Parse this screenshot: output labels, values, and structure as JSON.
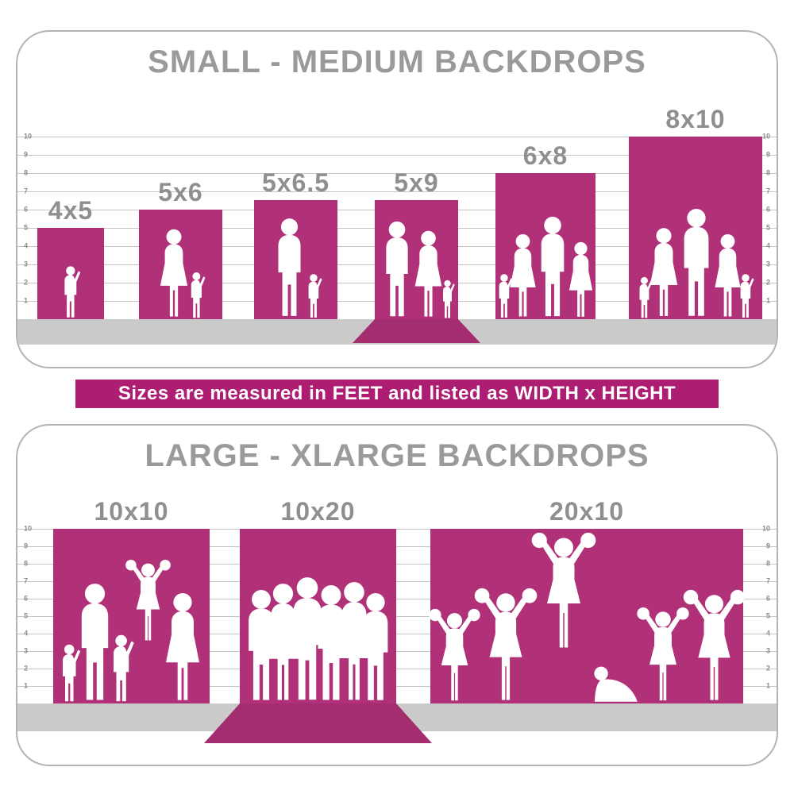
{
  "banner": {
    "text": "Sizes are measured in FEET and listed as WIDTH x HEIGHT"
  },
  "colors": {
    "magenta": "#b13179",
    "sweep": "#a32d6e",
    "floor": "#cacaca",
    "banner_bg": "#ad1e72",
    "banner_text": "#ffffff",
    "title_gray": "#9a9a9a",
    "label_gray": "#8f8f8f",
    "grid_line": "#c5c5c5",
    "grid_number": "#8c8c8c",
    "figure_white": "#ffffff",
    "panel_border": "#b3b3b3"
  },
  "chart_data": [
    {
      "type": "bar",
      "title": "SMALL - MEDIUM BACKDROPS",
      "unit": "feet",
      "axis": {
        "min": 0,
        "max": 10,
        "step": 1,
        "ticks_both_sides": true,
        "grid": true
      },
      "bars": [
        {
          "label": "4x5",
          "width_ft": 4,
          "height_ft": 5,
          "displayed_height_ft": 5,
          "floor_sweep": false,
          "figures": "toddler-silhouette"
        },
        {
          "label": "5x6",
          "width_ft": 5,
          "height_ft": 6,
          "displayed_height_ft": 6,
          "floor_sweep": false,
          "figures": "mother-and-child-silhouette"
        },
        {
          "label": "5x6.5",
          "width_ft": 5,
          "height_ft": 6.5,
          "displayed_height_ft": 6.5,
          "floor_sweep": false,
          "figures": "father-and-child-silhouette"
        },
        {
          "label": "5x9",
          "width_ft": 5,
          "height_ft": 9,
          "displayed_height_ft": 6.5,
          "floor_sweep": true,
          "figures": "family-with-small-child-silhouette"
        },
        {
          "label": "6x8",
          "width_ft": 6,
          "height_ft": 8,
          "displayed_height_ft": 8,
          "floor_sweep": false,
          "figures": "family-group-silhouette"
        },
        {
          "label": "8x10",
          "width_ft": 8,
          "height_ft": 10,
          "displayed_height_ft": 10,
          "floor_sweep": false,
          "figures": "large-family-silhouette"
        }
      ]
    },
    {
      "type": "bar",
      "title": "LARGE - XLARGE BACKDROPS",
      "unit": "feet",
      "axis": {
        "min": 0,
        "max": 10,
        "step": 1,
        "ticks_both_sides": true,
        "grid": true
      },
      "bars": [
        {
          "label": "10x10",
          "width_ft": 10,
          "height_ft": 10,
          "displayed_height_ft": 10,
          "floor_sweep": false,
          "figures": "family-group-with-child-on-shoulders-silhouette"
        },
        {
          "label": "10x20",
          "width_ft": 10,
          "height_ft": 20,
          "displayed_height_ft": 10,
          "floor_sweep": true,
          "figures": "team-crowd-silhouette"
        },
        {
          "label": "20x10",
          "width_ft": 20,
          "height_ft": 10,
          "displayed_height_ft": 10,
          "floor_sweep": false,
          "figures": "cheerleaders-pyramid-silhouette"
        }
      ]
    }
  ]
}
